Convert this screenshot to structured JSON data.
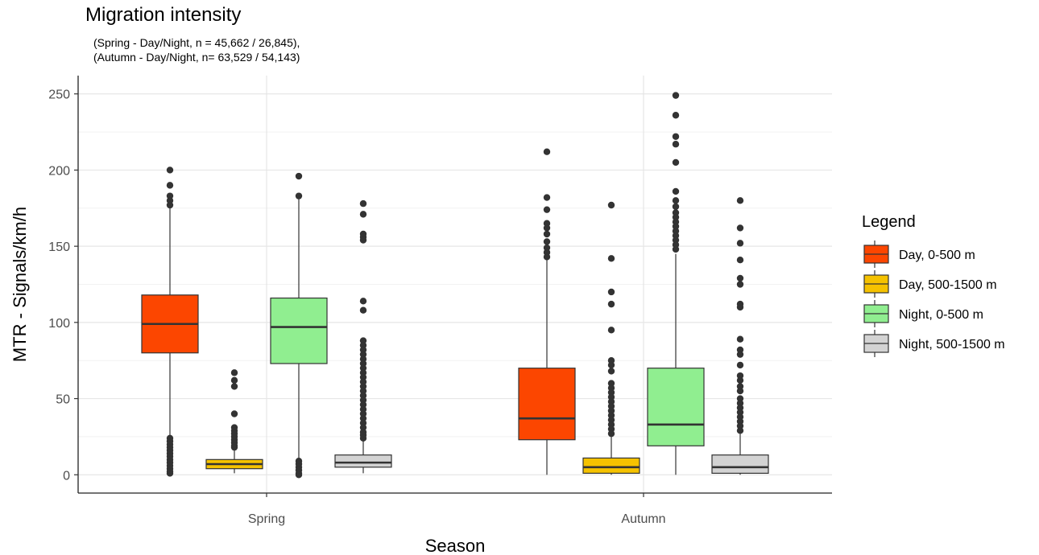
{
  "chart_data": {
    "type": "box",
    "title": "Migration intensity",
    "subtitle_lines": [
      "(Spring - Day/Night, n = 45,662 / 26,845),",
      "(Autumn - Day/Night, n= 63,529 / 54,143)"
    ],
    "xlabel": "Season",
    "ylabel": "MTR - Signals/km/h",
    "categories": [
      "Spring",
      "Autumn"
    ],
    "ylim": [
      -12,
      262
    ],
    "yticks": [
      0,
      50,
      100,
      150,
      200,
      250
    ],
    "grid": true,
    "legend": {
      "title": "Legend",
      "placement": "right"
    },
    "series": [
      {
        "name": "Day, 0-500 m",
        "color": "#FC4600",
        "boxes": [
          {
            "whisker_low": 0,
            "q1": 80,
            "median": 99,
            "q3": 118,
            "whisker_high": 175,
            "outliers": [
              200,
              190,
              183,
              180,
              177,
              24,
              22,
              20,
              18,
              16,
              14,
              12,
              10,
              8,
              6,
              4,
              2,
              1
            ]
          },
          {
            "whisker_low": 0,
            "q1": 23,
            "median": 37,
            "q3": 70,
            "whisker_high": 141,
            "outliers": [
              212,
              182,
              174,
              165,
              162,
              158,
              153,
              149,
              146,
              143
            ]
          }
        ]
      },
      {
        "name": "Day, 500-1500 m",
        "color": "#F5C200",
        "boxes": [
          {
            "whisker_low": 1,
            "q1": 4,
            "median": 7,
            "q3": 10,
            "whisker_high": 17,
            "outliers": [
              67,
              62,
              58,
              40,
              31,
              29,
              27,
              25,
              23,
              21,
              19,
              18
            ]
          },
          {
            "whisker_low": 0,
            "q1": 1,
            "median": 5,
            "q3": 11,
            "whisker_high": 25,
            "outliers": [
              177,
              142,
              120,
              112,
              95,
              75,
              72,
              68,
              60,
              57,
              54,
              51,
              48,
              45,
              42,
              39,
              36,
              33,
              30,
              27
            ]
          }
        ]
      },
      {
        "name": "Night, 0-500 m",
        "color": "#90EE90",
        "boxes": [
          {
            "whisker_low": 10,
            "q1": 73,
            "median": 97,
            "q3": 116,
            "whisker_high": 181,
            "outliers": [
              196,
              183,
              9,
              7,
              5,
              3,
              1,
              0
            ]
          },
          {
            "whisker_low": 0,
            "q1": 19,
            "median": 33,
            "q3": 70,
            "whisker_high": 145,
            "outliers": [
              249,
              236,
              222,
              217,
              205,
              186,
              180,
              176,
              172,
              169,
              166,
              163,
              160,
              157,
              154,
              151,
              148
            ]
          }
        ]
      },
      {
        "name": "Night, 500-1500 m",
        "color": "#D3D3D3",
        "boxes": [
          {
            "whisker_low": 1,
            "q1": 5,
            "median": 8,
            "q3": 13,
            "whisker_high": 23,
            "outliers": [
              178,
              171,
              158,
              156,
              154,
              114,
              108,
              88,
              85,
              82,
              79,
              76,
              73,
              70,
              67,
              64,
              61,
              58,
              55,
              52,
              49,
              46,
              43,
              40,
              37,
              34,
              31,
              28,
              26,
              24
            ]
          },
          {
            "whisker_low": 0,
            "q1": 1,
            "median": 5,
            "q3": 13,
            "whisker_high": 27,
            "outliers": [
              180,
              162,
              152,
              141,
              129,
              125,
              112,
              110,
              89,
              82,
              79,
              72,
              65,
              62,
              58,
              55,
              50,
              47,
              44,
              41,
              38,
              35,
              32,
              29
            ]
          }
        ]
      }
    ]
  }
}
